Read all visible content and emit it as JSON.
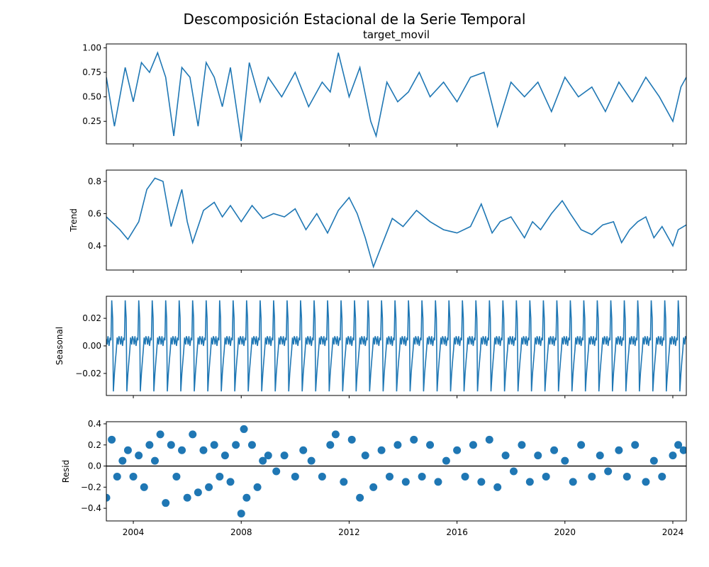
{
  "suptitle": "Descomposición Estacional de la Serie Temporal",
  "colors": {
    "line": "#1f77b4",
    "zero_line": "#000000",
    "axes": "#000000"
  },
  "chart_data": [
    {
      "panel": "observed",
      "type": "line",
      "title": "target_movil",
      "ylabel": "",
      "xlim": [
        2003.0,
        2024.5
      ],
      "ylim": [
        0.02,
        1.04
      ],
      "yticks": [
        0.25,
        0.5,
        0.75,
        1.0
      ],
      "ytick_labels": [
        "0.25",
        "0.50",
        "0.75",
        "1.00"
      ],
      "x": [
        2003.0,
        2003.3,
        2003.7,
        2004.0,
        2004.3,
        2004.6,
        2004.9,
        2005.2,
        2005.5,
        2005.8,
        2006.1,
        2006.4,
        2006.7,
        2007.0,
        2007.3,
        2007.6,
        2008.0,
        2008.3,
        2008.7,
        2009.0,
        2009.5,
        2010.0,
        2010.5,
        2011.0,
        2011.3,
        2011.6,
        2012.0,
        2012.4,
        2012.8,
        2013.0,
        2013.4,
        2013.8,
        2014.2,
        2014.6,
        2015.0,
        2015.5,
        2016.0,
        2016.5,
        2017.0,
        2017.5,
        2018.0,
        2018.5,
        2019.0,
        2019.5,
        2020.0,
        2020.5,
        2021.0,
        2021.5,
        2022.0,
        2022.5,
        2023.0,
        2023.5,
        2024.0,
        2024.3,
        2024.5
      ],
      "y": [
        0.7,
        0.2,
        0.8,
        0.45,
        0.85,
        0.75,
        0.95,
        0.7,
        0.1,
        0.8,
        0.7,
        0.2,
        0.85,
        0.7,
        0.4,
        0.8,
        0.05,
        0.85,
        0.45,
        0.7,
        0.5,
        0.75,
        0.4,
        0.65,
        0.55,
        0.95,
        0.5,
        0.8,
        0.25,
        0.1,
        0.65,
        0.45,
        0.55,
        0.75,
        0.5,
        0.65,
        0.45,
        0.7,
        0.75,
        0.2,
        0.65,
        0.5,
        0.65,
        0.35,
        0.7,
        0.5,
        0.6,
        0.35,
        0.65,
        0.45,
        0.7,
        0.5,
        0.25,
        0.6,
        0.7
      ]
    },
    {
      "panel": "trend",
      "type": "line",
      "title": "",
      "ylabel": "Trend",
      "xlim": [
        2003.0,
        2024.5
      ],
      "ylim": [
        0.25,
        0.87
      ],
      "yticks": [
        0.4,
        0.6,
        0.8
      ],
      "ytick_labels": [
        "0.4",
        "0.6",
        "0.8"
      ],
      "x": [
        2003.0,
        2003.5,
        2003.8,
        2004.2,
        2004.5,
        2004.8,
        2005.1,
        2005.4,
        2005.8,
        2006.0,
        2006.2,
        2006.6,
        2007.0,
        2007.3,
        2007.6,
        2008.0,
        2008.4,
        2008.8,
        2009.2,
        2009.6,
        2010.0,
        2010.4,
        2010.8,
        2011.2,
        2011.6,
        2012.0,
        2012.3,
        2012.6,
        2012.9,
        2013.2,
        2013.6,
        2014.0,
        2014.5,
        2015.0,
        2015.5,
        2016.0,
        2016.5,
        2016.9,
        2017.3,
        2017.6,
        2018.0,
        2018.5,
        2018.8,
        2019.1,
        2019.5,
        2019.9,
        2020.2,
        2020.6,
        2021.0,
        2021.4,
        2021.8,
        2022.1,
        2022.4,
        2022.7,
        2023.0,
        2023.3,
        2023.6,
        2024.0,
        2024.2,
        2024.5
      ],
      "y": [
        0.58,
        0.5,
        0.44,
        0.55,
        0.75,
        0.82,
        0.8,
        0.52,
        0.75,
        0.55,
        0.42,
        0.62,
        0.67,
        0.58,
        0.65,
        0.55,
        0.65,
        0.57,
        0.6,
        0.58,
        0.63,
        0.5,
        0.6,
        0.48,
        0.62,
        0.7,
        0.6,
        0.45,
        0.27,
        0.4,
        0.57,
        0.52,
        0.62,
        0.55,
        0.5,
        0.48,
        0.52,
        0.66,
        0.48,
        0.55,
        0.58,
        0.45,
        0.55,
        0.5,
        0.6,
        0.68,
        0.6,
        0.5,
        0.47,
        0.53,
        0.55,
        0.42,
        0.5,
        0.55,
        0.58,
        0.45,
        0.52,
        0.4,
        0.5,
        0.53
      ]
    },
    {
      "panel": "seasonal",
      "type": "line",
      "title": "",
      "ylabel": "Seasonal",
      "xlim": [
        2003.0,
        2024.5
      ],
      "ylim": [
        -0.036,
        0.036
      ],
      "yticks": [
        -0.02,
        0.0,
        0.02
      ],
      "ytick_labels": [
        "−0.02",
        "0.00",
        "0.02"
      ],
      "period_years": 0.5,
      "cycle_phase": [
        0.0,
        0.06,
        0.12,
        0.2,
        0.28,
        0.34,
        0.4,
        0.47,
        0.52,
        0.6,
        0.68,
        0.74,
        0.8,
        0.88,
        0.93,
        1.0
      ],
      "cycle_values": [
        0.005,
        0.001,
        0.007,
        0.0,
        0.006,
        0.004,
        0.033,
        0.02,
        -0.033,
        -0.02,
        -0.01,
        -0.003,
        0.006,
        0.001,
        0.007,
        0.005
      ]
    },
    {
      "panel": "resid",
      "type": "scatter",
      "title": "",
      "ylabel": "Resid",
      "xlim": [
        2003.0,
        2024.5
      ],
      "ylim": [
        -0.52,
        0.42
      ],
      "yticks": [
        -0.4,
        -0.2,
        0.0,
        0.2,
        0.4
      ],
      "ytick_labels": [
        "−0.4",
        "−0.2",
        "0.0",
        "0.2",
        "0.4"
      ],
      "zero_line": true,
      "x": [
        2003.0,
        2003.2,
        2003.4,
        2003.6,
        2003.8,
        2004.0,
        2004.2,
        2004.4,
        2004.6,
        2004.8,
        2005.0,
        2005.2,
        2005.4,
        2005.6,
        2005.8,
        2006.0,
        2006.2,
        2006.4,
        2006.6,
        2006.8,
        2007.0,
        2007.2,
        2007.4,
        2007.6,
        2007.8,
        2008.0,
        2008.1,
        2008.2,
        2008.4,
        2008.6,
        2008.8,
        2009.0,
        2009.3,
        2009.6,
        2010.0,
        2010.3,
        2010.6,
        2011.0,
        2011.3,
        2011.5,
        2011.8,
        2012.1,
        2012.4,
        2012.6,
        2012.9,
        2013.2,
        2013.5,
        2013.8,
        2014.1,
        2014.4,
        2014.7,
        2015.0,
        2015.3,
        2015.6,
        2016.0,
        2016.3,
        2016.6,
        2016.9,
        2017.2,
        2017.5,
        2017.8,
        2018.1,
        2018.4,
        2018.7,
        2019.0,
        2019.3,
        2019.6,
        2020.0,
        2020.3,
        2020.6,
        2021.0,
        2021.3,
        2021.6,
        2022.0,
        2022.3,
        2022.6,
        2023.0,
        2023.3,
        2023.6,
        2024.0,
        2024.2,
        2024.4
      ],
      "y": [
        -0.3,
        0.25,
        -0.1,
        0.05,
        0.15,
        -0.1,
        0.1,
        -0.2,
        0.2,
        0.05,
        0.3,
        -0.35,
        0.2,
        -0.1,
        0.15,
        -0.3,
        0.3,
        -0.25,
        0.15,
        -0.2,
        0.2,
        -0.1,
        0.1,
        -0.15,
        0.2,
        -0.45,
        0.35,
        -0.3,
        0.2,
        -0.2,
        0.05,
        0.1,
        -0.05,
        0.1,
        -0.1,
        0.15,
        0.05,
        -0.1,
        0.2,
        0.3,
        -0.15,
        0.25,
        -0.3,
        0.1,
        -0.2,
        0.15,
        -0.1,
        0.2,
        -0.15,
        0.25,
        -0.1,
        0.2,
        -0.15,
        0.05,
        0.15,
        -0.1,
        0.2,
        -0.15,
        0.25,
        -0.2,
        0.1,
        -0.05,
        0.2,
        -0.15,
        0.1,
        -0.1,
        0.15,
        0.05,
        -0.15,
        0.2,
        -0.1,
        0.1,
        -0.05,
        0.15,
        -0.1,
        0.2,
        -0.15,
        0.05,
        -0.1,
        0.1,
        0.2,
        0.15
      ]
    }
  ],
  "xaxis": {
    "ticks": [
      2004,
      2008,
      2012,
      2016,
      2020,
      2024
    ],
    "tick_labels": [
      "2004",
      "2008",
      "2012",
      "2016",
      "2020",
      "2024"
    ]
  }
}
